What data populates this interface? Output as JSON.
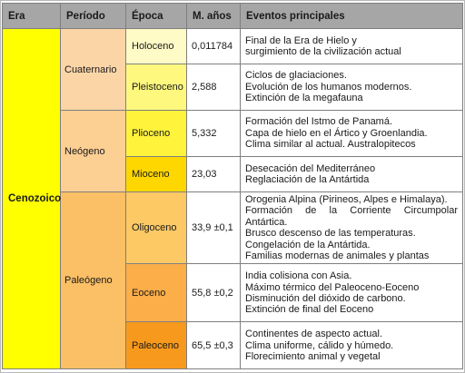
{
  "headers": [
    "Era",
    "Período",
    "Época",
    "M. años",
    "Eventos principales"
  ],
  "era": "Cenozoico",
  "periodos": {
    "cuaternario": "Cuaternario",
    "neogeno": "Neógeno",
    "paleogeno": "Paleógeno"
  },
  "rows": [
    {
      "epoca": "Holoceno",
      "anios": "0,011784",
      "eventos": [
        "Final de la Era de Hielo y",
        "surgimiento de la civilización actual"
      ]
    },
    {
      "epoca": "Pleistoceno",
      "anios": "2,588",
      "eventos": [
        "Ciclos de glaciaciones.",
        "Evolución de los humanos modernos.",
        "Extinción de la megafauna"
      ]
    },
    {
      "epoca": "Plioceno",
      "anios": "5,332",
      "eventos": [
        "Formación del Istmo de Panamá.",
        "Capa de hielo en el Ártico y Groenlandia.",
        "Clima similar al actual. Australopitecos"
      ]
    },
    {
      "epoca": "Mioceno",
      "anios": "23,03",
      "eventos": [
        "Desecación del Mediterráneo",
        "Reglaciación de la Antártida"
      ]
    },
    {
      "epoca": "Oligoceno",
      "anios": "33,9 ±0,1",
      "eventos": [
        "Orogenia Alpina (Pirineos, Alpes e Himalaya).",
        "Formación de la Corriente Circumpolar Antártica.",
        "Brusco descenso de las temperaturas.",
        "Congelación de la Antártida.",
        "Familias modernas de animales y plantas"
      ]
    },
    {
      "epoca": "Eoceno",
      "anios": "55,8 ±0,2",
      "eventos": [
        "India colisiona con Asia.",
        "Máximo térmico del Paleoceno-Eoceno",
        "Disminución del dióxido de carbono.",
        "Extinción de final del Eoceno"
      ]
    },
    {
      "epoca": "Paleoceno",
      "anios": "65,5 ±0,3",
      "eventos": [
        "Continentes de aspecto actual.",
        "Clima uniforme, cálido y húmedo.",
        "Florecimiento animal y vegetal"
      ]
    }
  ]
}
